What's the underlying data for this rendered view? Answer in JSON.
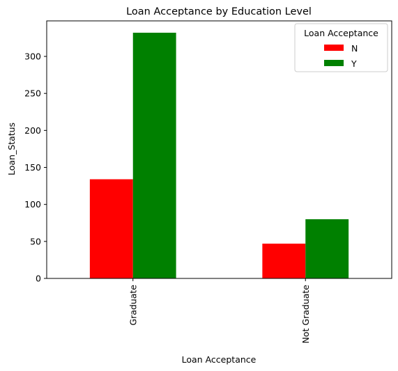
{
  "chart_data": {
    "type": "bar",
    "title": "Loan Acceptance by Education Level",
    "xlabel": "Loan Acceptance",
    "ylabel": "Loan_Status",
    "categories": [
      "Graduate",
      "Not Graduate"
    ],
    "series": [
      {
        "name": "N",
        "values": [
          134,
          47
        ],
        "color": "#ff0000"
      },
      {
        "name": "Y",
        "values": [
          332,
          80
        ],
        "color": "#008000"
      }
    ],
    "ylim": [
      0,
      348
    ],
    "yticks": [
      0,
      50,
      100,
      150,
      200,
      250,
      300
    ],
    "legend": {
      "title": "Loan Acceptance",
      "placement": "top-right"
    },
    "grid": false
  }
}
